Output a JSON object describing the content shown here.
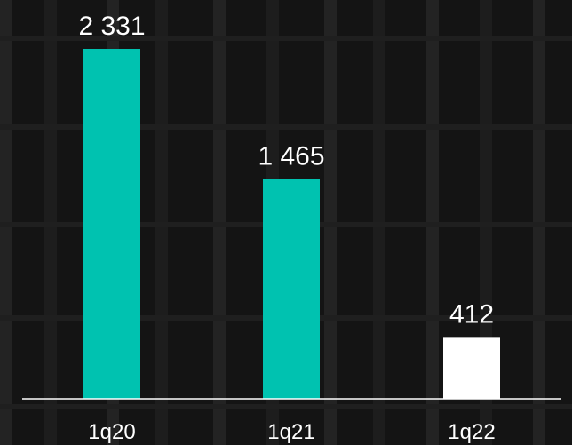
{
  "chart_data": {
    "type": "bar",
    "categories": [
      "1q20",
      "1q21",
      "1q22"
    ],
    "values": [
      2331,
      1465,
      412
    ],
    "value_labels": [
      "2 331",
      "1 465",
      "412"
    ],
    "ylim": [
      0,
      2331
    ],
    "grid": false,
    "legend": "none",
    "colors": {
      "bars": [
        "#00c2b0",
        "#00c2b0",
        "#ffffff"
      ],
      "background": "#141414",
      "axis": "#ffffff",
      "text": "#ffffff"
    }
  }
}
